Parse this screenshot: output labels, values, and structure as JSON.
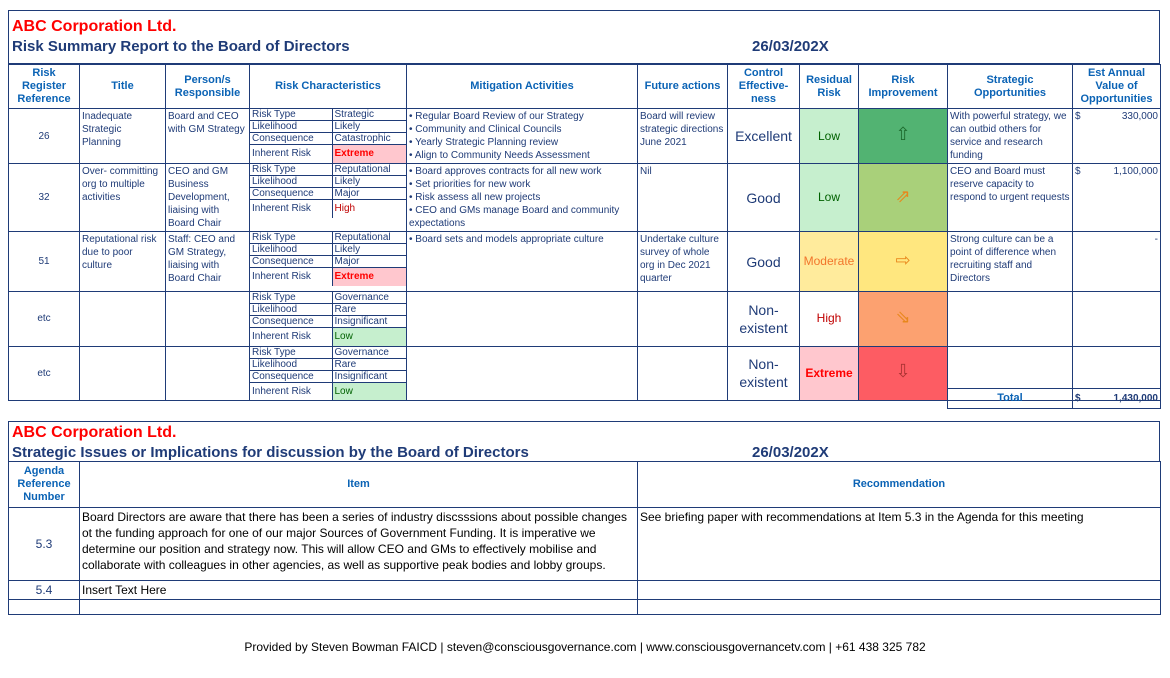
{
  "report1": {
    "company": "ABC Corporation Ltd.",
    "title": "Risk Summary Report to the Board of Directors",
    "date": "26/03/202X",
    "headers": [
      "Risk Register Reference",
      "Title",
      "Person/s Responsible",
      "Risk Characteristics",
      "Mitigation Activities",
      "Future actions",
      "Control Effective-ness",
      "Residual Risk",
      "Risk Improvement",
      "Strategic Opportunities",
      "Est Annual Value of Opportunities"
    ],
    "char_labels": [
      "Risk Type",
      "Likelihood",
      "Consequence",
      "Inherent Risk"
    ],
    "rows": [
      {
        "ref": "26",
        "title": "Inadequate Strategic Planning",
        "person": "Board and CEO with GM Strategy",
        "risk_type": "Strategic",
        "likelihood": "Likely",
        "consequence": "Catastrophic",
        "inherent": "Extreme",
        "mitigation": [
          "Regular Board Review of our Strategy",
          "Community and Clinical Councils",
          "Yearly Strategic Planning review",
          "Align to Community Needs Assessment"
        ],
        "future": "Board will review strategic directions June 2021",
        "control": "Excellent",
        "residual": "Low",
        "improvement_icon": "arrow-up-icon",
        "improvement_glyph": "⇧",
        "improvement_color": "#52b372",
        "opportunity": "With powerful strategy, we can outbid others for service and research funding",
        "value_currency": "$",
        "value": "330,000"
      },
      {
        "ref": "32",
        "title": "Over- committing org to multiple activities",
        "person": "CEO and GM Business Development, liaising with Board Chair",
        "risk_type": "Reputational",
        "likelihood": "Likely",
        "consequence": "Major",
        "inherent": "High",
        "mitigation": [
          "Board approves contracts for all new work",
          "Set priorities for new work",
          "Risk assess all new projects",
          "CEO and GMs manage Board and community expectations"
        ],
        "future": "Nil",
        "control": "Good",
        "residual": "Low",
        "improvement_icon": "arrow-up-right-icon",
        "improvement_glyph": "⇗",
        "improvement_color": "#a9d07a",
        "opportunity": "CEO and Board must reserve capacity to respond to urgent requests",
        "value_currency": "$",
        "value": "1,100,000"
      },
      {
        "ref": "51",
        "title": "Reputational risk due to poor culture",
        "person": "Staff: CEO and GM Strategy, liaising with Board Chair",
        "risk_type": "Reputational",
        "likelihood": "Likely",
        "consequence": "Major",
        "inherent": "Extreme",
        "mitigation": [
          "Board sets and models appropriate culture"
        ],
        "future": "Undertake culture survey of whole org  in Dec 2021 quarter",
        "control": "Good",
        "residual": "Moderate",
        "improvement_icon": "arrow-right-icon",
        "improvement_glyph": "⇨",
        "improvement_color": "#ffe77f",
        "opportunity": "Strong culture can be a point of difference when recruiting staff and Directors",
        "value_currency": "",
        "value": "-"
      },
      {
        "ref": "etc",
        "title": "",
        "person": "",
        "risk_type": "Governance",
        "likelihood": "Rare",
        "consequence": "Insignificant",
        "inherent": "Low",
        "mitigation": [],
        "future": "",
        "control": "Non-existent",
        "residual": "High",
        "improvement_icon": "arrow-down-right-icon",
        "improvement_glyph": "⇘",
        "improvement_color": "#fca170",
        "opportunity": "",
        "value_currency": "",
        "value": ""
      },
      {
        "ref": "etc",
        "title": "",
        "person": "",
        "risk_type": "Governance",
        "likelihood": "Rare",
        "consequence": "Insignificant",
        "inherent": "Low",
        "mitigation": [],
        "future": "",
        "control": "Non-existent",
        "residual": "Extreme",
        "improvement_icon": "arrow-down-icon",
        "improvement_glyph": "⇩",
        "improvement_color": "#fd5c63",
        "opportunity": "",
        "value_currency": "",
        "value": ""
      }
    ],
    "total_label": "Total",
    "total_currency": "$",
    "total_value": "1,430,000"
  },
  "report2": {
    "company": "ABC Corporation Ltd.",
    "title": "Strategic Issues or Implications for discussion by the Board of Directors",
    "date": "26/03/202X",
    "headers": [
      "Agenda Reference Number",
      "Item",
      "Recommendation"
    ],
    "rows": [
      {
        "ref": "5.3",
        "item": "Board Directors are aware that there has been a series of industry discsssions about possible changes ot the funding approach for one of our major Sources of Government Funding. It is imperative we determine our position and strategy now.  This will allow CEO and GMs to effectively mobilise and collaborate with colleagues in other agencies, as well as supportive peak bodies and lobby groups.",
        "recommendation": "See briefing paper with recommendations at Item 5.3 in the Agenda for this meeting"
      },
      {
        "ref": "5.4",
        "item": "Insert Text Here",
        "recommendation": ""
      },
      {
        "ref": "",
        "item": "",
        "recommendation": ""
      }
    ]
  },
  "footer": "Provided by Steven Bowman FAICD | steven@consciousgovernance.com | www.consciousgovernancetv.com | +61 438 325 782"
}
